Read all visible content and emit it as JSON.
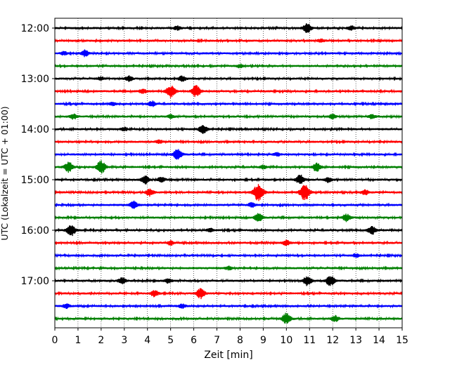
{
  "chart_data": {
    "type": "line",
    "title": "",
    "xlabel": "Zeit  [min]",
    "ylabel": "UTC (Lokalzeit = UTC + 01:00)",
    "xlim": [
      0,
      15
    ],
    "x_ticks": [
      0,
      1,
      2,
      3,
      4,
      5,
      6,
      7,
      8,
      9,
      10,
      11,
      12,
      13,
      14,
      15
    ],
    "x_tick_labels": [
      "0",
      "1",
      "2",
      "3",
      "4",
      "5",
      "6",
      "7",
      "8",
      "9",
      "10",
      "11",
      "12",
      "13",
      "14",
      "15"
    ],
    "y_tick_labels": [
      "12:00",
      "13:00",
      "14:00",
      "15:00",
      "16:00",
      "17:00"
    ],
    "grid": "vertical dotted lines at each minute",
    "legend": "none",
    "colors": [
      "#000000",
      "#ff0000",
      "#0000ff",
      "#008000"
    ],
    "series": [
      {
        "start": "12:00",
        "color": "#000000",
        "bursts": [
          [
            10.9,
            0.9
          ],
          [
            5.3,
            0.4
          ],
          [
            12.8,
            0.4
          ]
        ]
      },
      {
        "start": "12:15",
        "color": "#ff0000",
        "bursts": [
          [
            11.5,
            0.3
          ]
        ]
      },
      {
        "start": "12:30",
        "color": "#0000ff",
        "bursts": [
          [
            1.3,
            0.6
          ],
          [
            0.4,
            0.3
          ]
        ]
      },
      {
        "start": "12:45",
        "color": "#008000",
        "bursts": [
          [
            8.0,
            0.3
          ]
        ]
      },
      {
        "start": "13:00",
        "color": "#000000",
        "bursts": [
          [
            3.2,
            0.5
          ],
          [
            5.5,
            0.5
          ],
          [
            2.0,
            0.3
          ]
        ]
      },
      {
        "start": "13:15",
        "color": "#ff0000",
        "bursts": [
          [
            5.0,
            1.2
          ],
          [
            6.1,
            1.1
          ],
          [
            3.8,
            0.4
          ]
        ]
      },
      {
        "start": "13:30",
        "color": "#0000ff",
        "bursts": [
          [
            4.2,
            0.5
          ],
          [
            2.5,
            0.3
          ]
        ]
      },
      {
        "start": "13:45",
        "color": "#008000",
        "bursts": [
          [
            0.8,
            0.5
          ],
          [
            5.0,
            0.4
          ],
          [
            12.0,
            0.4
          ],
          [
            13.7,
            0.4
          ]
        ]
      },
      {
        "start": "14:00",
        "color": "#000000",
        "bursts": [
          [
            6.4,
            0.8
          ],
          [
            3.0,
            0.3
          ]
        ]
      },
      {
        "start": "14:15",
        "color": "#ff0000",
        "bursts": [
          [
            4.5,
            0.3
          ]
        ]
      },
      {
        "start": "14:30",
        "color": "#0000ff",
        "bursts": [
          [
            5.3,
            1.0
          ],
          [
            9.6,
            0.3
          ]
        ]
      },
      {
        "start": "14:45",
        "color": "#008000",
        "bursts": [
          [
            0.6,
            1.0
          ],
          [
            2.0,
            1.2
          ],
          [
            11.3,
            0.8
          ],
          [
            9.0,
            0.3
          ]
        ]
      },
      {
        "start": "15:00",
        "color": "#000000",
        "bursts": [
          [
            10.6,
            0.9
          ],
          [
            3.9,
            0.8
          ],
          [
            4.6,
            0.5
          ],
          [
            11.8,
            0.5
          ]
        ]
      },
      {
        "start": "15:15",
        "color": "#ff0000",
        "bursts": [
          [
            8.8,
            1.7
          ],
          [
            10.8,
            1.6
          ],
          [
            4.1,
            0.7
          ],
          [
            13.4,
            0.5
          ]
        ]
      },
      {
        "start": "15:30",
        "color": "#0000ff",
        "bursts": [
          [
            3.4,
            0.7
          ],
          [
            8.5,
            0.4
          ]
        ]
      },
      {
        "start": "15:45",
        "color": "#008000",
        "bursts": [
          [
            8.8,
            0.8
          ],
          [
            12.6,
            0.7
          ]
        ]
      },
      {
        "start": "16:00",
        "color": "#000000",
        "bursts": [
          [
            0.7,
            1.1
          ],
          [
            13.7,
            0.8
          ],
          [
            6.7,
            0.3
          ]
        ]
      },
      {
        "start": "16:15",
        "color": "#ff0000",
        "bursts": [
          [
            10.0,
            0.5
          ],
          [
            5.0,
            0.4
          ]
        ]
      },
      {
        "start": "16:30",
        "color": "#0000ff",
        "bursts": [
          [
            13.0,
            0.3
          ]
        ]
      },
      {
        "start": "16:45",
        "color": "#008000",
        "bursts": [
          [
            7.5,
            0.3
          ]
        ]
      },
      {
        "start": "17:00",
        "color": "#000000",
        "bursts": [
          [
            11.9,
            1.0
          ],
          [
            10.9,
            0.9
          ],
          [
            2.9,
            0.6
          ],
          [
            4.9,
            0.4
          ]
        ]
      },
      {
        "start": "17:15",
        "color": "#ff0000",
        "bursts": [
          [
            6.3,
            1.0
          ],
          [
            4.3,
            0.6
          ]
        ]
      },
      {
        "start": "17:30",
        "color": "#0000ff",
        "bursts": [
          [
            0.5,
            0.4
          ],
          [
            5.5,
            0.4
          ]
        ]
      },
      {
        "start": "17:45",
        "color": "#008000",
        "bursts": [
          [
            10.0,
            1.1
          ],
          [
            12.1,
            0.6
          ]
        ]
      }
    ]
  }
}
